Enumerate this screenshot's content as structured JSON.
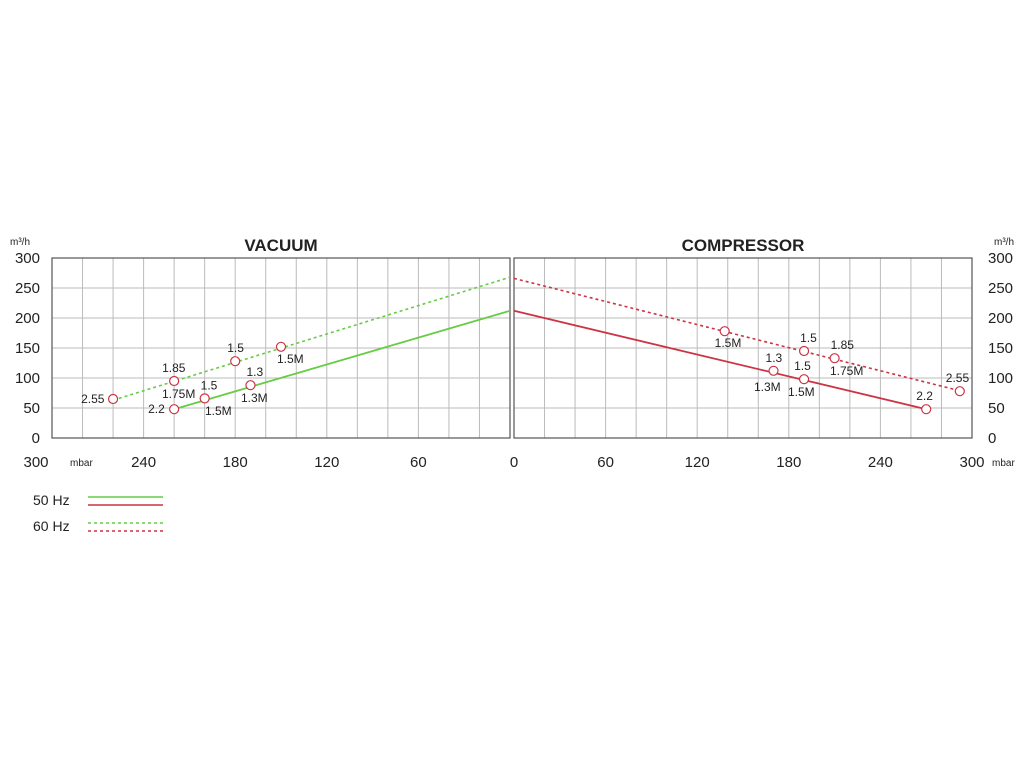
{
  "legend": {
    "items": [
      {
        "label": "50 Hz",
        "colors": [
          "#66cc44",
          "#cc3344"
        ],
        "style": "solid"
      },
      {
        "label": "60 Hz",
        "colors": [
          "#66cc44",
          "#cc3344"
        ],
        "style": "dashed"
      }
    ]
  },
  "colors": {
    "vacuum": "#66cc44",
    "compressor": "#cc3344",
    "grid": "#bbbbbb",
    "frame": "#555555"
  },
  "chart_data": [
    {
      "type": "line",
      "title": "VACUUM",
      "ylabel": "m³/h",
      "xlabel": "mbar",
      "xlim": [
        300,
        0
      ],
      "ylim": [
        0,
        300
      ],
      "x_ticks": [
        "300",
        "240",
        "180",
        "120",
        "60",
        "0"
      ],
      "y_ticks": [
        "300",
        "250",
        "200",
        "150",
        "100",
        "50",
        "0"
      ],
      "grid": true,
      "series": [
        {
          "name": "50 Hz",
          "style": "solid",
          "color": "#66cc44",
          "x": [
            220,
            0
          ],
          "y": [
            48,
            212
          ]
        },
        {
          "name": "60 Hz",
          "style": "dashed",
          "color": "#66cc44",
          "x": [
            260,
            0
          ],
          "y": [
            63,
            268
          ]
        }
      ],
      "points": [
        {
          "x": 260,
          "y": 65,
          "label": "2.55"
        },
        {
          "x": 220,
          "y": 95,
          "label": "1.85"
        },
        {
          "x": 220,
          "y": 48,
          "label": "2.2"
        },
        {
          "x": 200,
          "y": 66,
          "label": "1.5"
        },
        {
          "x": 180,
          "y": 128,
          "label": "1.5"
        },
        {
          "x": 170,
          "y": 88,
          "label": "1.3"
        },
        {
          "x": 150,
          "y": 152,
          "label": "1.5M"
        }
      ],
      "annotations": [
        "1.75M",
        "1.5M",
        "1.3M"
      ]
    },
    {
      "type": "line",
      "title": "COMPRESSOR",
      "ylabel": "m³/h",
      "xlabel": "mbar",
      "xlim": [
        0,
        300
      ],
      "ylim": [
        0,
        300
      ],
      "x_ticks": [
        "0",
        "60",
        "120",
        "180",
        "240",
        "300"
      ],
      "y_ticks": [
        "300",
        "250",
        "200",
        "150",
        "100",
        "50",
        "0"
      ],
      "grid": true,
      "series": [
        {
          "name": "50 Hz",
          "style": "solid",
          "color": "#cc3344",
          "x": [
            0,
            270
          ],
          "y": [
            212,
            48
          ]
        },
        {
          "name": "60 Hz",
          "style": "dashed",
          "color": "#cc3344",
          "x": [
            0,
            290
          ],
          "y": [
            266,
            80
          ]
        }
      ],
      "points": [
        {
          "x": 138,
          "y": 178,
          "label": "1.5M"
        },
        {
          "x": 170,
          "y": 112,
          "label": "1.3"
        },
        {
          "x": 190,
          "y": 145,
          "label": "1.5"
        },
        {
          "x": 190,
          "y": 98,
          "label": "1.5"
        },
        {
          "x": 210,
          "y": 133,
          "label": "1.85"
        },
        {
          "x": 270,
          "y": 48,
          "label": "2.2"
        },
        {
          "x": 292,
          "y": 78,
          "label": "2.55"
        }
      ],
      "annotations": [
        "1.75M",
        "1.3M",
        "1.5M"
      ]
    }
  ]
}
